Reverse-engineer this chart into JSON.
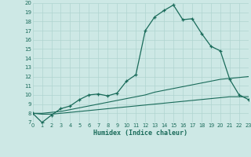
{
  "title": "",
  "xlabel": "Humidex (Indice chaleur)",
  "xlim": [
    0,
    23
  ],
  "ylim": [
    7,
    20
  ],
  "yticks": [
    7,
    8,
    9,
    10,
    11,
    12,
    13,
    14,
    15,
    16,
    17,
    18,
    19,
    20
  ],
  "xticks": [
    0,
    1,
    2,
    3,
    4,
    5,
    6,
    7,
    8,
    9,
    10,
    11,
    12,
    13,
    14,
    15,
    16,
    17,
    18,
    19,
    20,
    21,
    22,
    23
  ],
  "bg_color": "#cde8e5",
  "grid_color": "#b0d4d0",
  "line_color": "#1a6b5a",
  "main_line": [
    8.0,
    7.0,
    7.8,
    8.5,
    8.8,
    9.5,
    10.0,
    10.1,
    9.9,
    10.2,
    11.5,
    12.2,
    17.0,
    18.5,
    19.2,
    19.8,
    18.2,
    18.3,
    16.7,
    15.3,
    14.8,
    11.7,
    10.0,
    9.5
  ],
  "ref_line1": [
    8.0,
    8.0,
    8.1,
    8.2,
    8.4,
    8.6,
    8.8,
    9.0,
    9.2,
    9.4,
    9.6,
    9.8,
    10.0,
    10.3,
    10.5,
    10.7,
    10.9,
    11.1,
    11.3,
    11.5,
    11.7,
    11.8,
    11.9,
    12.0
  ],
  "ref_line2": [
    8.0,
    7.9,
    7.9,
    8.0,
    8.1,
    8.2,
    8.3,
    8.4,
    8.5,
    8.6,
    8.7,
    8.8,
    8.9,
    9.0,
    9.1,
    9.2,
    9.3,
    9.4,
    9.5,
    9.6,
    9.7,
    9.8,
    9.8,
    9.8
  ]
}
